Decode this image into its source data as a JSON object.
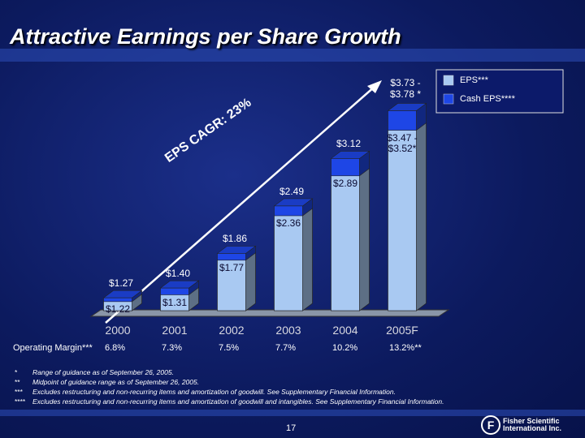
{
  "title": "Attractive Earnings per Share Growth",
  "chart_data": {
    "type": "bar",
    "categories": [
      "2000",
      "2001",
      "2002",
      "2003",
      "2004",
      "2005F"
    ],
    "series": [
      {
        "name": "EPS***",
        "color": "#a9c9f2",
        "values": [
          1.22,
          1.31,
          1.77,
          2.36,
          2.89,
          3.495
        ],
        "value_labels": [
          "$1.22",
          "$1.31",
          "$1.77",
          "$2.36",
          "$2.89",
          "$3.47 -\n$3.52*"
        ]
      },
      {
        "name": "Cash EPS****",
        "color": "#1e46e6",
        "values": [
          1.27,
          1.4,
          1.86,
          2.49,
          3.12,
          3.755
        ],
        "value_labels": [
          "$1.27",
          "$1.40",
          "$1.86",
          "$2.49",
          "$3.12",
          "$3.73 -\n$3.78 *"
        ]
      }
    ],
    "ylim": [
      1.1,
      3.9
    ],
    "annotation": "EPS CAGR: 23%"
  },
  "operating_margin": {
    "label": "Operating Margin***",
    "values": [
      "6.8%",
      "7.3%",
      "7.5%",
      "7.7%",
      "10.2%",
      "13.2%**"
    ]
  },
  "footnotes": [
    {
      "mark": "*",
      "text": "Range of guidance as of September 26, 2005."
    },
    {
      "mark": "**",
      "text": "Midpoint of guidance range as of September 26, 2005."
    },
    {
      "mark": "***",
      "text": "Excludes restructuring and non-recurring items and amortization of goodwill. See Supplementary Financial Information."
    },
    {
      "mark": "****",
      "text": "Excludes restructuring and non-recurring items and amortization of goodwill and intangibles. See Supplementary Financial Information."
    }
  ],
  "page_number": "17",
  "logo": "Fisher Scientific\nInternational Inc."
}
